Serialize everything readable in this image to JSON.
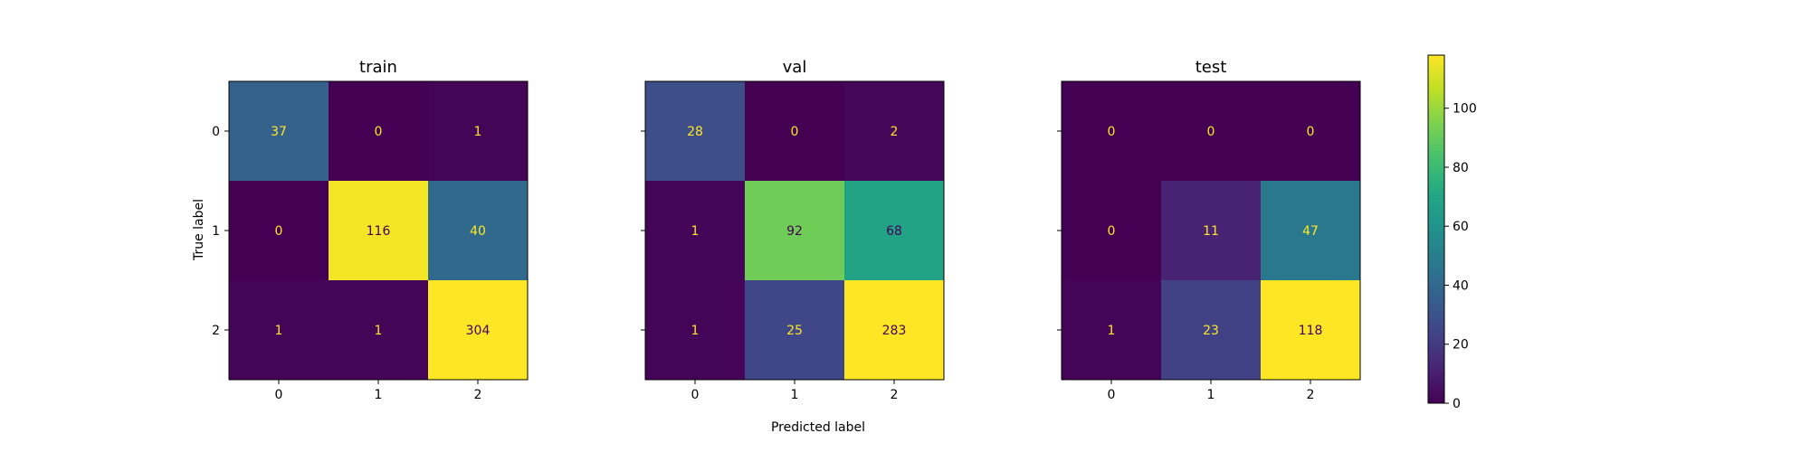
{
  "chart_data": {
    "type": "heatmap",
    "colormap": "viridis",
    "xlabel": "Predicted label",
    "ylabel": "True label",
    "classes": [
      "0",
      "1",
      "2"
    ],
    "colorbar": {
      "range": [
        0,
        118
      ],
      "ticks": [
        "0",
        "20",
        "40",
        "60",
        "80",
        "100"
      ]
    },
    "panels": [
      {
        "title": "train",
        "matrix": [
          [
            37,
            0,
            1
          ],
          [
            0,
            116,
            40
          ],
          [
            1,
            1,
            304
          ]
        ]
      },
      {
        "title": "val",
        "matrix": [
          [
            28,
            0,
            2
          ],
          [
            1,
            92,
            68
          ],
          [
            1,
            25,
            283
          ]
        ]
      },
      {
        "title": "test",
        "matrix": [
          [
            0,
            0,
            0
          ],
          [
            0,
            11,
            47
          ],
          [
            1,
            23,
            118
          ]
        ]
      }
    ]
  }
}
